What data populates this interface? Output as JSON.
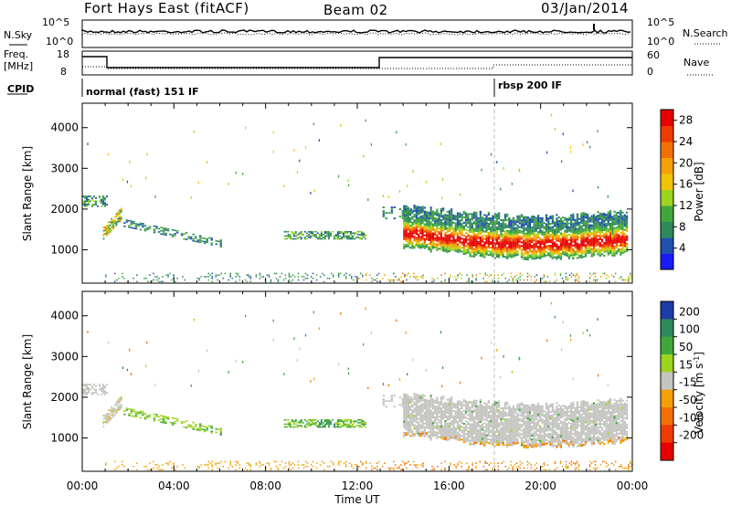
{
  "header": {
    "radar": "Fort Hays East (fitACF)",
    "beam": "Beam 02",
    "date": "03/Jan/2014"
  },
  "top_panels": {
    "nsky_label": "N.Sky",
    "nsearch_label": "N.Search",
    "noise_ticks": [
      "10^5",
      "10^0"
    ],
    "freq_label": "Freq.",
    "freq_unit": "[MHz]",
    "freq_ticks": [
      "18",
      "8"
    ],
    "nave_label": "Nave",
    "nave_ticks": [
      "60",
      "0"
    ],
    "cpid_label": "CPID",
    "cpid_segments": [
      {
        "label": "normal (fast) 151 IF",
        "start_hour": 0
      },
      {
        "label": "rbsp 200 IF",
        "start_hour": 18
      }
    ]
  },
  "chart_data": [
    {
      "type": "heatmap",
      "name": "power",
      "ylabel": "Slant Range [km]",
      "xlabel": "",
      "xlim_hours": [
        0,
        24
      ],
      "ylim_km": [
        180,
        4600
      ],
      "yticks": [
        1000,
        2000,
        3000,
        4000
      ],
      "colorbar": {
        "label": "Power [dB]",
        "ticks": [
          4,
          8,
          12,
          16,
          20,
          24,
          28
        ],
        "range": [
          0,
          30
        ],
        "colors": [
          "#1a1aff",
          "#2050b0",
          "#2f8a5a",
          "#3fa83a",
          "#9cd41e",
          "#f0c400",
          "#f5a000",
          "#f27000",
          "#ef3a00",
          "#e80000"
        ]
      },
      "features": [
        {
          "region": "dusk-side band",
          "hours": [
            14,
            23.8
          ],
          "range_km": [
            1000,
            2000
          ],
          "dominant_power_db": [
            12,
            28
          ]
        },
        {
          "region": "early arc",
          "hours": [
            0,
            6
          ],
          "range_km": [
            1000,
            2300
          ],
          "dominant_power_db": [
            4,
            16
          ]
        },
        {
          "region": "mid patch",
          "hours": [
            8.8,
            12.5
          ],
          "range_km": [
            1250,
            1450
          ],
          "dominant_power_db": [
            4,
            16
          ]
        },
        {
          "region": "near-range echoes",
          "hours": [
            1,
            24
          ],
          "range_km": [
            200,
            420
          ],
          "dominant_power_db": [
            4,
            24
          ]
        }
      ]
    },
    {
      "type": "heatmap",
      "name": "velocity",
      "ylabel": "Slant Range [km]",
      "xlabel": "Time UT",
      "xlim_hours": [
        0,
        24
      ],
      "ylim_km": [
        180,
        4600
      ],
      "yticks": [
        1000,
        2000,
        3000,
        4000
      ],
      "xticks": [
        "00:00",
        "04:00",
        "08:00",
        "12:00",
        "16:00",
        "20:00",
        "00:00"
      ],
      "colorbar": {
        "label": "Velocity [m s^-1]",
        "ticks": [
          "200",
          "100",
          "50",
          "15",
          "-15",
          "-50",
          "-100",
          "-200"
        ],
        "colors": [
          "#1c3ca8",
          "#2e8a5c",
          "#3fa83a",
          "#9cd41e",
          "#c4c4c0",
          "#f5a000",
          "#f27000",
          "#ef3a00",
          "#e80000"
        ]
      },
      "features": [
        {
          "region": "dusk-side band",
          "hours": [
            14,
            23.8
          ],
          "range_km": [
            1000,
            2100
          ],
          "dominant_velocity": [
            -15,
            15
          ]
        },
        {
          "region": "early arc",
          "hours": [
            1.5,
            6
          ],
          "range_km": [
            1000,
            1700
          ],
          "dominant_velocity": [
            15,
            50
          ]
        },
        {
          "region": "mid patch",
          "hours": [
            8.8,
            12.5
          ],
          "range_km": [
            1250,
            1450
          ],
          "dominant_velocity": [
            15,
            100
          ]
        },
        {
          "region": "near-range echoes",
          "hours": [
            1,
            24
          ],
          "range_km": [
            200,
            600
          ],
          "dominant_velocity": [
            -100,
            -15
          ]
        }
      ]
    }
  ]
}
